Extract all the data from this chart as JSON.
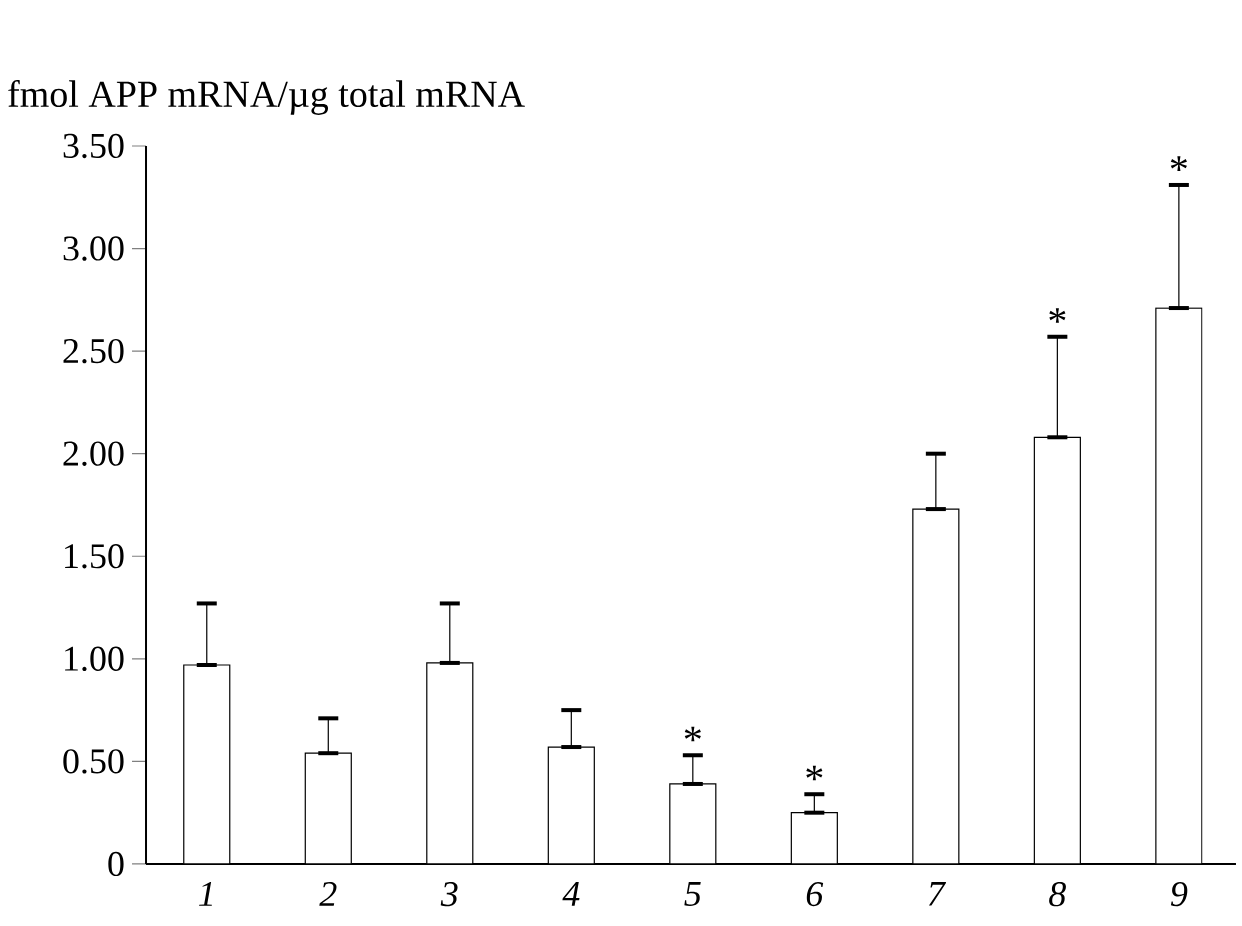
{
  "chart_data": {
    "type": "bar",
    "ylabel": "fmol APP mRNA/µg total mRNA",
    "categories": [
      "1",
      "2",
      "3",
      "4",
      "5",
      "6",
      "7",
      "8",
      "9"
    ],
    "values": [
      0.97,
      0.54,
      0.98,
      0.57,
      0.39,
      0.25,
      1.73,
      2.08,
      2.71
    ],
    "errors": [
      [
        0.97,
        1.27
      ],
      [
        0.54,
        0.71
      ],
      [
        0.98,
        1.27
      ],
      [
        0.57,
        0.75
      ],
      [
        0.39,
        0.53
      ],
      [
        0.25,
        0.34
      ],
      [
        1.73,
        2.0
      ],
      [
        2.08,
        2.57
      ],
      [
        2.71,
        3.31
      ]
    ],
    "color": "#ffffff",
    "ylim": [
      0,
      3.5
    ],
    "yticks": [
      0,
      {
        "value": 0.5,
        "label": "0.50"
      },
      {
        "value": 1.0,
        "label": "1.00"
      },
      {
        "value": 1.5,
        "label": "1.50"
      },
      {
        "value": 2.0,
        "label": "2.00"
      },
      {
        "value": 2.5,
        "label": "2.50"
      },
      {
        "value": 3.0,
        "label": "3.00"
      },
      {
        "value": 3.5,
        "label": "3.50"
      }
    ],
    "annotations": [
      {
        "text": "*",
        "x": "5",
        "y": 0.53
      },
      {
        "text": "*",
        "x": "6",
        "y": 0.34
      },
      {
        "text": "*",
        "x": "8",
        "y": 2.57
      },
      {
        "text": "*",
        "x": "9",
        "y": 3.31
      }
    ]
  }
}
